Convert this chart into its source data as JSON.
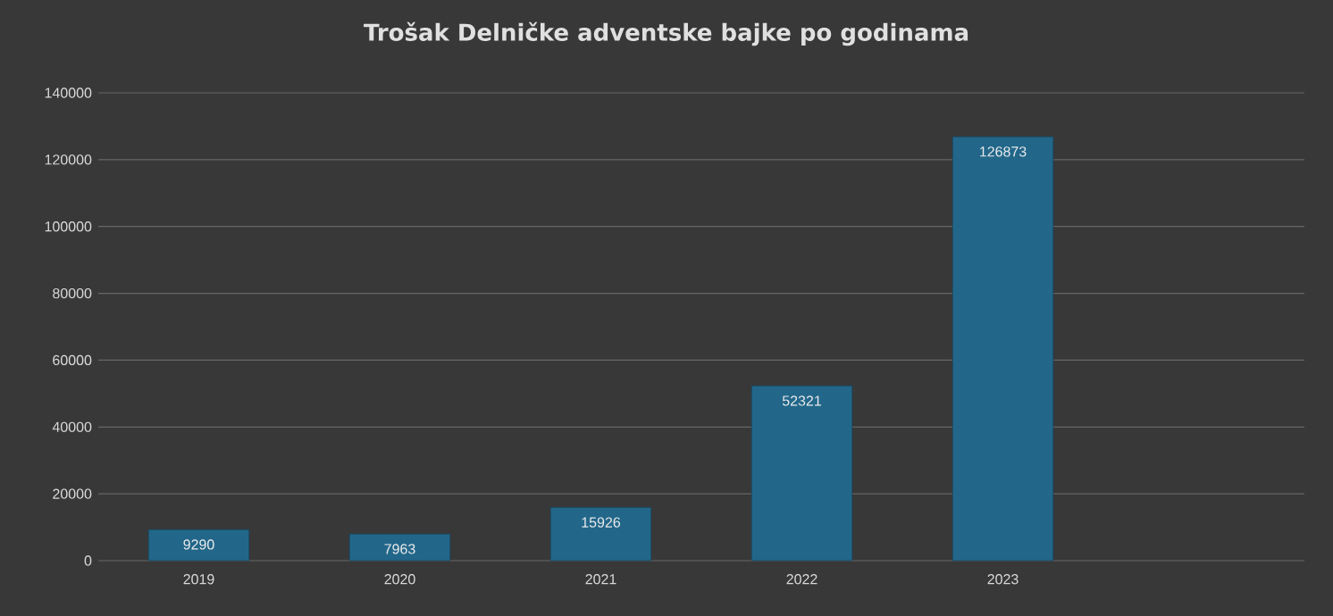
{
  "chart_data": {
    "type": "bar",
    "title": "Trošak Delničke adventske bajke po godinama",
    "categories": [
      "2019",
      "2020",
      "2021",
      "2022",
      "2023",
      null
    ],
    "values": [
      9290,
      7963,
      15926,
      52321,
      126873,
      null
    ],
    "color": "#22678a",
    "ylim": [
      0,
      140000
    ],
    "yticks": [
      0,
      20000,
      40000,
      60000,
      80000,
      100000,
      120000,
      140000
    ],
    "grid": "y",
    "data_labels": true
  }
}
